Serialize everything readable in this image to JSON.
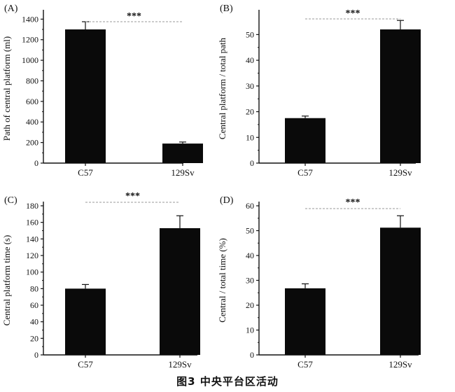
{
  "caption": "图3   中央平台区活动",
  "colors": {
    "bar": "#0a0a0a",
    "axis": "#111111",
    "bracket": "#9a9a9a"
  },
  "chart_data": [
    {
      "panel": "(A)",
      "type": "bar",
      "categories": [
        "C57",
        "129Sv"
      ],
      "values": [
        1300,
        190
      ],
      "errors": [
        75,
        15
      ],
      "ylabel": "Path of central platform (ml)",
      "ylim": [
        0,
        1450
      ],
      "yticks": [
        0,
        200,
        400,
        600,
        800,
        1000,
        1200,
        1400
      ],
      "significance": "***"
    },
    {
      "panel": "(B)",
      "type": "bar",
      "categories": [
        "C57",
        "129Sv"
      ],
      "values": [
        17.5,
        52
      ],
      "errors": [
        0.8,
        3.5
      ],
      "ylabel": "Central platform / total path",
      "ylim": [
        0,
        58
      ],
      "yticks": [
        0,
        10,
        20,
        30,
        40,
        50
      ],
      "significance": "***"
    },
    {
      "panel": "(C)",
      "type": "bar",
      "categories": [
        "C57",
        "129Sv"
      ],
      "values": [
        80,
        153
      ],
      "errors": [
        5,
        15
      ],
      "ylabel": "Central platform time (s)",
      "ylim": [
        0,
        180
      ],
      "yticks": [
        0,
        20,
        40,
        60,
        80,
        100,
        120,
        140,
        160,
        180
      ],
      "significance": "***"
    },
    {
      "panel": "(D)",
      "type": "bar",
      "categories": [
        "C57",
        "129Sv"
      ],
      "values": [
        26.8,
        51.2
      ],
      "errors": [
        1.8,
        4.8
      ],
      "ylabel": "Central / total time (%)",
      "ylim": [
        0,
        60
      ],
      "yticks": [
        0,
        10,
        20,
        30,
        40,
        50,
        60
      ],
      "significance": "***"
    }
  ]
}
